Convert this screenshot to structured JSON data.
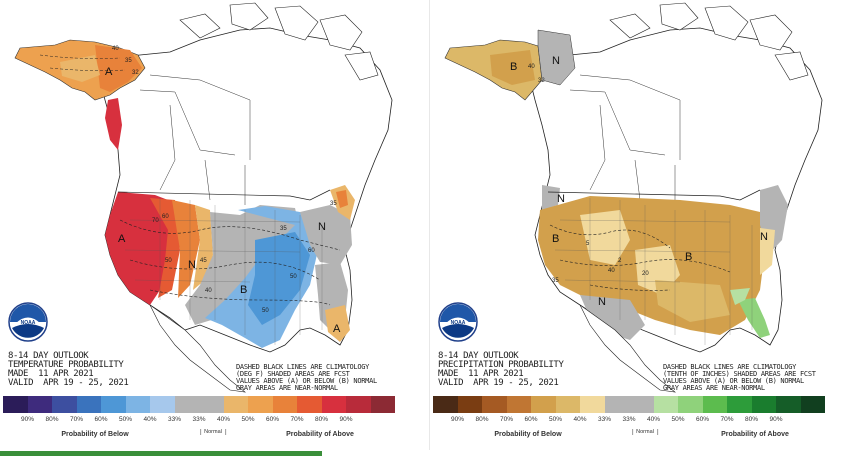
{
  "temperature": {
    "caption_lines": [
      "8-14 DAY OUTLOOK",
      "TEMPERATURE PROBABILITY",
      "MADE  11 APR 2021",
      "VALID  APR 19 - 25, 2021"
    ],
    "note_lines": [
      "DASHED BLACK LINES ARE CLIMATOLOGY",
      "(DEG F) SHADED AREAS ARE FCST",
      "VALUES ABOVE (A) OR BELOW (B) NORMAL",
      "GRAY AREAS ARE NEAR-NORMAL"
    ],
    "colors": [
      "#2b1c59",
      "#3e2b7d",
      "#3d4fa0",
      "#3a73bd",
      "#4e97d6",
      "#7db4e4",
      "#a6c8ec",
      "#b4b4b4",
      "#b4b4b4",
      "#eab66a",
      "#eda14f",
      "#e8823a",
      "#e55a33",
      "#d7303e",
      "#b82b3a",
      "#8c2a34"
    ],
    "ticks": [
      "90%",
      "80%",
      "70%",
      "60%",
      "50%",
      "40%",
      "33%",
      "33%",
      "40%",
      "50%",
      "60%",
      "70%",
      "80%",
      "90%"
    ],
    "below_label": "Probability of Below",
    "normal_label": "Normal",
    "above_label": "Probability of Above",
    "region_labels": [
      "A",
      "A",
      "B",
      "N",
      "N",
      "A"
    ],
    "contour_labels": [
      "40",
      "35",
      "32",
      "70",
      "60",
      "50",
      "35",
      "40",
      "50",
      "45",
      "50",
      "60",
      "35"
    ]
  },
  "precipitation": {
    "caption_lines": [
      "8-14 DAY OUTLOOK",
      "PRECIPITATION PROBABILITY",
      "MADE  11 APR 2021",
      "VALID  APR 19 - 25, 2021"
    ],
    "note_lines": [
      "DASHED BLACK LINES ARE CLIMATOLOGY",
      "(TENTH OF INCHES) SHADED AREAS ARE FCST",
      "VALUES ABOVE (A) OR BELOW (B) NORMAL",
      "GRAY AREAS ARE NEAR-NORMAL"
    ],
    "colors": [
      "#4a2a16",
      "#7a3d12",
      "#a55a23",
      "#c07633",
      "#d2a04c",
      "#dcb868",
      "#f1d99c",
      "#b4b4b4",
      "#b4b4b4",
      "#b6e0a2",
      "#8fd27b",
      "#5cbc4e",
      "#2d9c3a",
      "#1a7d2e",
      "#155d28",
      "#113f1f"
    ],
    "ticks": [
      "90%",
      "80%",
      "70%",
      "60%",
      "50%",
      "40%",
      "33%",
      "33%",
      "40%",
      "50%",
      "60%",
      "70%",
      "80%",
      "90%"
    ],
    "below_label": "Probability of Below",
    "normal_label": "Normal",
    "above_label": "Probability of Above",
    "region_labels": [
      "B",
      "N",
      "N",
      "B",
      "B",
      "N",
      "N"
    ],
    "contour_labels": [
      "40",
      "32",
      "2",
      "40",
      "5",
      "35",
      "20"
    ]
  },
  "logo_text": "NOAA"
}
